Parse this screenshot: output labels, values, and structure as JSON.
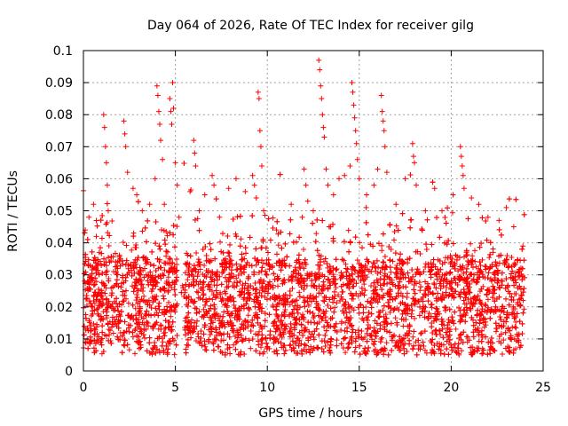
{
  "chart_data": {
    "type": "scatter",
    "title": "Day 064 of 2026, Rate Of TEC Index for receiver gilg",
    "xlabel": "GPS time / hours",
    "ylabel": "ROTI / TECUs",
    "xlim": [
      0,
      25
    ],
    "ylim": [
      0,
      0.1
    ],
    "xticks": [
      "0",
      "5",
      "10",
      "15",
      "20",
      "25"
    ],
    "yticks": [
      "0",
      "0.01",
      "0.02",
      "0.03",
      "0.04",
      "0.05",
      "0.06",
      "0.07",
      "0.08",
      "0.09",
      "0.1"
    ],
    "grid": true,
    "marker": "+",
    "color": "#ff0000",
    "series": [
      {
        "name": "ROTI",
        "points": [
          [
            0.1,
            0.044
          ],
          [
            0.3,
            0.048
          ],
          [
            0.55,
            0.052
          ],
          [
            0.7,
            0.042
          ],
          [
            1.1,
            0.08
          ],
          [
            1.15,
            0.076
          ],
          [
            1.2,
            0.07
          ],
          [
            1.25,
            0.065
          ],
          [
            1.3,
            0.058
          ],
          [
            1.35,
            0.05
          ],
          [
            2.2,
            0.078
          ],
          [
            2.25,
            0.074
          ],
          [
            2.3,
            0.07
          ],
          [
            2.4,
            0.062
          ],
          [
            2.7,
            0.057
          ],
          [
            2.9,
            0.055
          ],
          [
            3.2,
            0.05
          ],
          [
            3.6,
            0.052
          ],
          [
            3.9,
            0.06
          ],
          [
            4.0,
            0.089
          ],
          [
            4.05,
            0.086
          ],
          [
            4.1,
            0.081
          ],
          [
            4.15,
            0.077
          ],
          [
            4.2,
            0.072
          ],
          [
            4.3,
            0.066
          ],
          [
            4.4,
            0.052
          ],
          [
            4.7,
            0.085
          ],
          [
            4.75,
            0.081
          ],
          [
            4.8,
            0.077
          ],
          [
            4.85,
            0.09
          ],
          [
            4.9,
            0.082
          ],
          [
            5.0,
            0.065
          ],
          [
            5.1,
            0.058
          ],
          [
            5.2,
            0.048
          ],
          [
            5.8,
            0.056
          ],
          [
            6.0,
            0.072
          ],
          [
            6.05,
            0.068
          ],
          [
            6.1,
            0.064
          ],
          [
            6.3,
            0.05
          ],
          [
            6.6,
            0.055
          ],
          [
            7.0,
            0.061
          ],
          [
            7.1,
            0.058
          ],
          [
            7.4,
            0.048
          ],
          [
            7.9,
            0.057
          ],
          [
            8.3,
            0.06
          ],
          [
            8.8,
            0.056
          ],
          [
            9.2,
            0.061
          ],
          [
            9.3,
            0.058
          ],
          [
            9.4,
            0.054
          ],
          [
            9.5,
            0.087
          ],
          [
            9.55,
            0.085
          ],
          [
            9.6,
            0.075
          ],
          [
            9.65,
            0.07
          ],
          [
            9.7,
            0.064
          ],
          [
            9.8,
            0.05
          ],
          [
            10.5,
            0.044
          ],
          [
            11.3,
            0.052
          ],
          [
            11.9,
            0.048
          ],
          [
            12.0,
            0.063
          ],
          [
            12.1,
            0.058
          ],
          [
            12.2,
            0.053
          ],
          [
            12.5,
            0.05
          ],
          [
            12.8,
            0.097
          ],
          [
            12.85,
            0.094
          ],
          [
            12.9,
            0.089
          ],
          [
            12.95,
            0.085
          ],
          [
            13.0,
            0.08
          ],
          [
            13.05,
            0.076
          ],
          [
            13.1,
            0.073
          ],
          [
            13.2,
            0.063
          ],
          [
            13.3,
            0.058
          ],
          [
            13.6,
            0.055
          ],
          [
            13.9,
            0.06
          ],
          [
            14.2,
            0.061
          ],
          [
            14.5,
            0.064
          ],
          [
            14.6,
            0.09
          ],
          [
            14.65,
            0.087
          ],
          [
            14.7,
            0.083
          ],
          [
            14.75,
            0.079
          ],
          [
            14.8,
            0.075
          ],
          [
            14.85,
            0.071
          ],
          [
            14.9,
            0.066
          ],
          [
            15.0,
            0.06
          ],
          [
            15.4,
            0.055
          ],
          [
            15.8,
            0.058
          ],
          [
            16.0,
            0.063
          ],
          [
            16.2,
            0.086
          ],
          [
            16.25,
            0.081
          ],
          [
            16.3,
            0.078
          ],
          [
            16.35,
            0.075
          ],
          [
            16.4,
            0.07
          ],
          [
            16.5,
            0.062
          ],
          [
            17.0,
            0.052
          ],
          [
            17.5,
            0.06
          ],
          [
            17.9,
            0.071
          ],
          [
            17.95,
            0.067
          ],
          [
            18.0,
            0.065
          ],
          [
            18.1,
            0.058
          ],
          [
            18.6,
            0.05
          ],
          [
            19.1,
            0.057
          ],
          [
            19.5,
            0.05
          ],
          [
            20.1,
            0.055
          ],
          [
            20.5,
            0.07
          ],
          [
            20.55,
            0.067
          ],
          [
            20.6,
            0.064
          ],
          [
            20.65,
            0.061
          ],
          [
            20.7,
            0.057
          ],
          [
            21.1,
            0.054
          ],
          [
            21.5,
            0.052
          ],
          [
            22.0,
            0.048
          ],
          [
            22.6,
            0.047
          ],
          [
            23.0,
            0.051
          ],
          [
            23.4,
            0.045
          ],
          [
            23.9,
            0.039
          ]
        ]
      }
    ]
  }
}
